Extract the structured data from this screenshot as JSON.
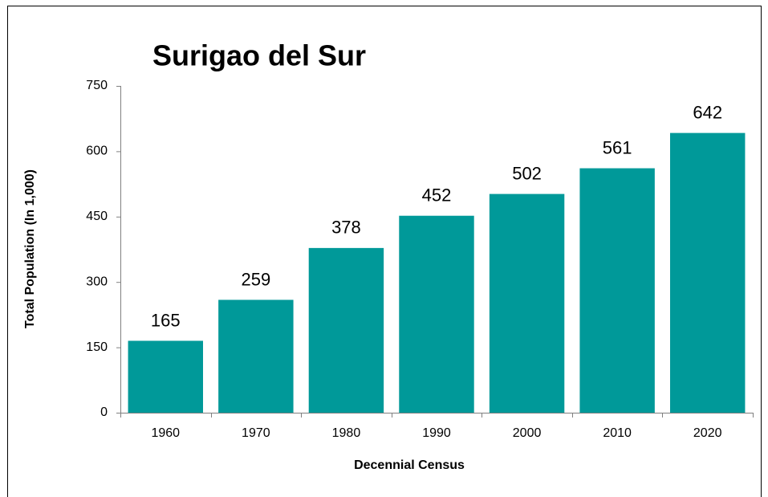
{
  "chart_data": {
    "type": "bar",
    "title": "Surigao del Sur",
    "x_label": "Decennial Census",
    "y_label": "Total Population (In 1,000)",
    "categories": [
      "1960",
      "1970",
      "1980",
      "1990",
      "2000",
      "2010",
      "2020"
    ],
    "values": [
      165,
      259,
      378,
      452,
      502,
      561,
      642
    ],
    "color": "#009999",
    "ylim": [
      0,
      750
    ],
    "yticks": [
      0,
      150,
      300,
      450,
      600,
      750
    ],
    "grid": false
  }
}
